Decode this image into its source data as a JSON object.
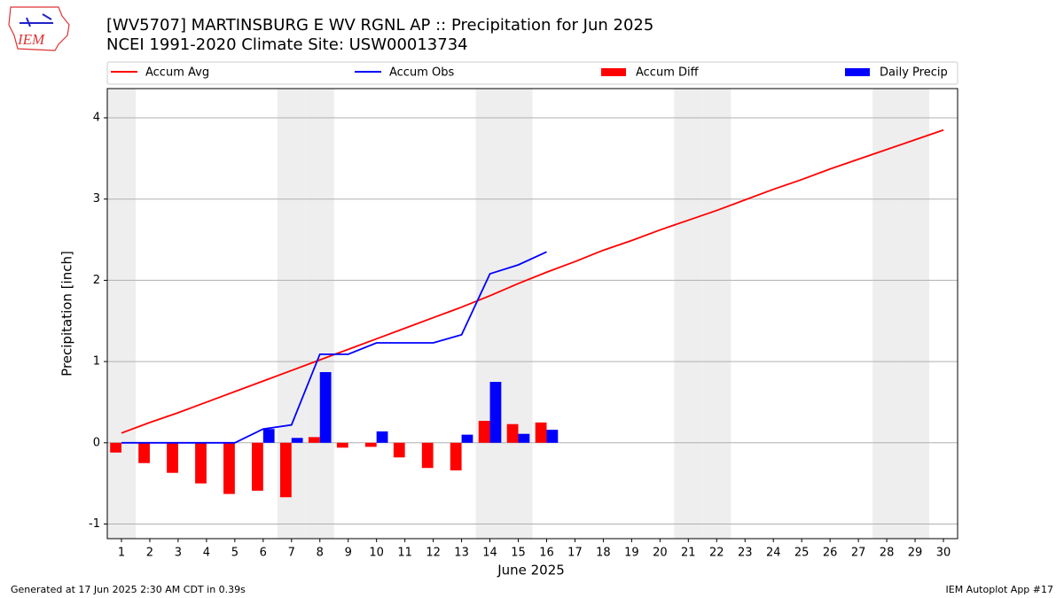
{
  "logo_text": "IEM",
  "footer_left": "Generated at 17 Jun 2025 2:30 AM CDT in 0.39s",
  "footer_right": "IEM Autoplot App #17",
  "chart_data": {
    "type": "bar",
    "title": "[WV5707] MARTINSBURG E WV RGNL AP :: Precipitation for Jun 2025",
    "subtitle": "NCEI 1991-2020 Climate Site: USW00013734",
    "xlabel": "June 2025",
    "ylabel": "Precipitation [inch]",
    "x": [
      1,
      2,
      3,
      4,
      5,
      6,
      7,
      8,
      9,
      10,
      11,
      12,
      13,
      14,
      15,
      16,
      17,
      18,
      19,
      20,
      21,
      22,
      23,
      24,
      25,
      26,
      27,
      28,
      29,
      30
    ],
    "xlim": [
      0.5,
      30.5
    ],
    "xticks": [
      1,
      2,
      3,
      4,
      5,
      6,
      7,
      8,
      9,
      10,
      11,
      12,
      13,
      14,
      15,
      16,
      17,
      18,
      19,
      20,
      21,
      22,
      23,
      24,
      25,
      26,
      27,
      28,
      29,
      30
    ],
    "ylim": [
      -1.18,
      4.36
    ],
    "yticks": [
      -1,
      0,
      1,
      2,
      3,
      4
    ],
    "grid": true,
    "shaded_days": [
      1,
      7,
      8,
      14,
      15,
      21,
      22,
      28,
      29
    ],
    "series": [
      {
        "name": "Accum Avg",
        "type": "line",
        "color": "#ff0000",
        "values": [
          0.12,
          0.25,
          0.37,
          0.5,
          0.63,
          0.76,
          0.89,
          1.02,
          1.15,
          1.28,
          1.41,
          1.54,
          1.67,
          1.81,
          1.96,
          2.1,
          2.23,
          2.37,
          2.49,
          2.62,
          2.74,
          2.86,
          2.99,
          3.12,
          3.24,
          3.37,
          3.49,
          3.61,
          3.73,
          3.85
        ]
      },
      {
        "name": "Accum Obs",
        "type": "line",
        "color": "#0000ff",
        "values": [
          0,
          0,
          0,
          0,
          0,
          0.17,
          0.22,
          1.09,
          1.09,
          1.23,
          1.23,
          1.23,
          1.33,
          2.08,
          2.19,
          2.35,
          null,
          null,
          null,
          null,
          null,
          null,
          null,
          null,
          null,
          null,
          null,
          null,
          null,
          null
        ]
      },
      {
        "name": "Accum Diff",
        "type": "bar",
        "color": "#ff0000",
        "values": [
          -0.12,
          -0.25,
          -0.37,
          -0.5,
          -0.63,
          -0.59,
          -0.67,
          0.07,
          -0.06,
          -0.05,
          -0.18,
          -0.31,
          -0.34,
          0.27,
          0.23,
          0.25,
          null,
          null,
          null,
          null,
          null,
          null,
          null,
          null,
          null,
          null,
          null,
          null,
          null,
          null
        ]
      },
      {
        "name": "Daily Precip",
        "type": "bar",
        "color": "#0000ff",
        "values": [
          0,
          0,
          0,
          0,
          0,
          0.17,
          0.06,
          0.87,
          0,
          0.14,
          0,
          0,
          0.1,
          0.75,
          0.11,
          0.16,
          null,
          null,
          null,
          null,
          null,
          null,
          null,
          null,
          null,
          null,
          null,
          null,
          null,
          null
        ]
      }
    ]
  }
}
